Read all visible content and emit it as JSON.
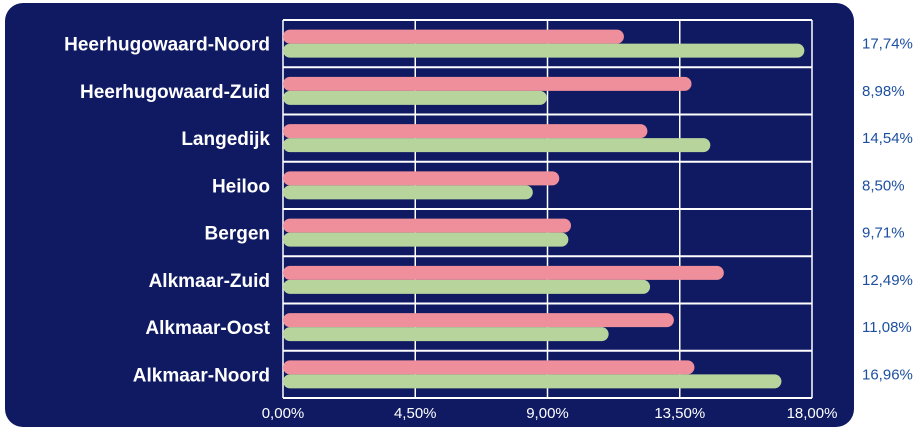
{
  "chart_data": {
    "type": "bar",
    "orientation": "horizontal",
    "categories": [
      "Heerhugowaard-Noord",
      "Heerhugowaard-Zuid",
      "Langedijk",
      "Heiloo",
      "Bergen",
      "Alkmaar-Zuid",
      "Alkmaar-Oost",
      "Alkmaar-Noord"
    ],
    "series": [
      {
        "values": [
          11.6,
          13.9,
          12.4,
          9.4,
          9.8,
          15.0,
          13.3,
          14.0
        ]
      },
      {
        "values": [
          17.74,
          8.98,
          14.54,
          8.5,
          9.71,
          12.49,
          11.08,
          16.96
        ]
      }
    ],
    "value_labels": [
      "17,74%",
      "8,98%",
      "14,54%",
      "8,50%",
      "9,71%",
      "12,49%",
      "11,08%",
      "16,96%"
    ],
    "x_ticks": [
      "0,00%",
      "4,50%",
      "9,00%",
      "13,50%",
      "18,00%"
    ],
    "xlim": [
      0,
      18
    ],
    "grid": true,
    "colors": {
      "background": "#0f1a63",
      "series1": "#ef8f9b",
      "series2": "#b8d49d",
      "grid": "#ffffff",
      "tick_text": "#ffffff",
      "category_text": "#ffffff",
      "right_label_text": "#1c4fa0"
    }
  }
}
